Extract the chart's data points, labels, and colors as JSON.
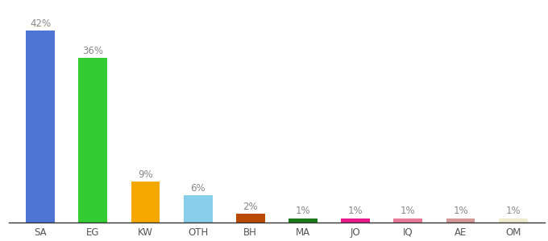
{
  "categories": [
    "SA",
    "EG",
    "KW",
    "OTH",
    "BH",
    "MA",
    "JO",
    "IQ",
    "AE",
    "OM"
  ],
  "values": [
    42,
    36,
    9,
    6,
    2,
    1,
    1,
    1,
    1,
    1
  ],
  "bar_colors": [
    "#4f75d4",
    "#33cc33",
    "#f5a800",
    "#87ceeb",
    "#b94a00",
    "#1a7a1a",
    "#e8198a",
    "#e87898",
    "#d49898",
    "#f0ecd0"
  ],
  "labels": [
    "42%",
    "36%",
    "9%",
    "6%",
    "2%",
    "1%",
    "1%",
    "1%",
    "1%",
    "1%"
  ],
  "ylim": [
    0,
    48
  ],
  "background_color": "#ffffff",
  "label_fontsize": 8.5,
  "tick_fontsize": 8.5,
  "label_color": "#888888"
}
